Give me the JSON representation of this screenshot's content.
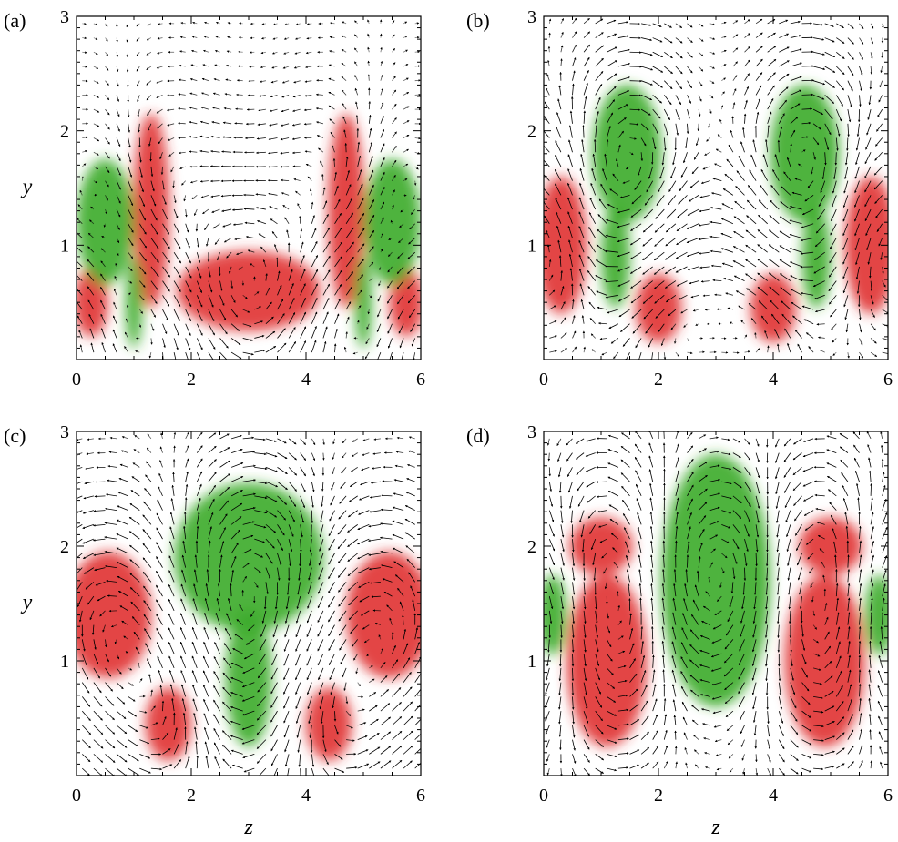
{
  "chart_data": [
    {
      "type": "heatmap",
      "panel_label": "(a)",
      "xlabel": "",
      "ylabel": "y",
      "xlim": [
        0,
        6
      ],
      "ylim": [
        0,
        3
      ],
      "x_ticks": [
        "0",
        "2",
        "4",
        "6"
      ],
      "y_ticks": [
        "1",
        "2",
        "3"
      ],
      "overlay": "velocity vectors",
      "regions": [
        {
          "sign": "positive",
          "color": "#e03030",
          "cx": 3.0,
          "cy": 0.6,
          "rx": 1.25,
          "ry": 0.35
        },
        {
          "sign": "positive",
          "color": "#e03030",
          "cx": 1.3,
          "cy": 1.3,
          "rx": 0.32,
          "ry": 0.85
        },
        {
          "sign": "positive",
          "color": "#e03030",
          "cx": 4.7,
          "cy": 1.3,
          "rx": 0.32,
          "ry": 0.85
        },
        {
          "sign": "positive",
          "color": "#e03030",
          "cx": 0.25,
          "cy": 0.5,
          "rx": 0.3,
          "ry": 0.3
        },
        {
          "sign": "positive",
          "color": "#e03030",
          "cx": 5.75,
          "cy": 0.5,
          "rx": 0.3,
          "ry": 0.3
        },
        {
          "sign": "negative",
          "color": "#3cab2a",
          "cx": 0.5,
          "cy": 1.2,
          "rx": 0.5,
          "ry": 0.55
        },
        {
          "sign": "negative",
          "color": "#3cab2a",
          "cx": 5.5,
          "cy": 1.2,
          "rx": 0.5,
          "ry": 0.55
        },
        {
          "sign": "negative",
          "color": "#3cab2a",
          "cx": 1.0,
          "cy": 0.5,
          "rx": 0.15,
          "ry": 0.4
        },
        {
          "sign": "negative",
          "color": "#3cab2a",
          "cx": 5.0,
          "cy": 0.5,
          "rx": 0.15,
          "ry": 0.4
        }
      ]
    },
    {
      "type": "heatmap",
      "panel_label": "(b)",
      "xlabel": "",
      "ylabel": "",
      "xlim": [
        0,
        6
      ],
      "ylim": [
        0,
        3
      ],
      "x_ticks": [
        "0",
        "2",
        "4",
        "6"
      ],
      "y_ticks": [
        "1",
        "2",
        "3"
      ],
      "overlay": "velocity vectors",
      "regions": [
        {
          "sign": "negative",
          "color": "#3cab2a",
          "cx": 1.45,
          "cy": 1.8,
          "rx": 0.6,
          "ry": 0.6
        },
        {
          "sign": "negative",
          "color": "#3cab2a",
          "cx": 4.55,
          "cy": 1.8,
          "rx": 0.6,
          "ry": 0.6
        },
        {
          "sign": "negative",
          "color": "#3cab2a",
          "cx": 1.25,
          "cy": 0.9,
          "rx": 0.25,
          "ry": 0.45
        },
        {
          "sign": "negative",
          "color": "#3cab2a",
          "cx": 4.75,
          "cy": 0.9,
          "rx": 0.25,
          "ry": 0.45
        },
        {
          "sign": "positive",
          "color": "#e03030",
          "cx": 0.3,
          "cy": 1.0,
          "rx": 0.45,
          "ry": 0.6
        },
        {
          "sign": "positive",
          "color": "#e03030",
          "cx": 5.7,
          "cy": 1.0,
          "rx": 0.45,
          "ry": 0.6
        },
        {
          "sign": "positive",
          "color": "#e03030",
          "cx": 2.0,
          "cy": 0.45,
          "rx": 0.4,
          "ry": 0.3
        },
        {
          "sign": "positive",
          "color": "#e03030",
          "cx": 4.0,
          "cy": 0.45,
          "rx": 0.4,
          "ry": 0.3
        }
      ]
    },
    {
      "type": "heatmap",
      "panel_label": "(c)",
      "xlabel": "z",
      "ylabel": "y",
      "xlim": [
        0,
        6
      ],
      "ylim": [
        0,
        3
      ],
      "x_ticks": [
        "0",
        "2",
        "4",
        "6"
      ],
      "y_ticks": [
        "1",
        "2",
        "3"
      ],
      "overlay": "velocity vectors",
      "regions": [
        {
          "sign": "negative",
          "color": "#3cab2a",
          "cx": 3.0,
          "cy": 1.9,
          "rx": 1.3,
          "ry": 0.65
        },
        {
          "sign": "negative",
          "color": "#3cab2a",
          "cx": 3.0,
          "cy": 0.85,
          "rx": 0.4,
          "ry": 0.6
        },
        {
          "sign": "positive",
          "color": "#e03030",
          "cx": 0.55,
          "cy": 1.4,
          "rx": 0.75,
          "ry": 0.55
        },
        {
          "sign": "positive",
          "color": "#e03030",
          "cx": 5.45,
          "cy": 1.4,
          "rx": 0.75,
          "ry": 0.55
        },
        {
          "sign": "positive",
          "color": "#e03030",
          "cx": 1.6,
          "cy": 0.45,
          "rx": 0.4,
          "ry": 0.32
        },
        {
          "sign": "positive",
          "color": "#e03030",
          "cx": 4.4,
          "cy": 0.45,
          "rx": 0.4,
          "ry": 0.32
        }
      ]
    },
    {
      "type": "heatmap",
      "panel_label": "(d)",
      "xlabel": "z",
      "ylabel": "",
      "xlim": [
        0,
        6
      ],
      "ylim": [
        0,
        3
      ],
      "x_ticks": [
        "0",
        "2",
        "4",
        "6"
      ],
      "y_ticks": [
        "1",
        "2",
        "3"
      ],
      "overlay": "velocity vectors",
      "regions": [
        {
          "sign": "negative",
          "color": "#3cab2a",
          "cx": 3.0,
          "cy": 1.7,
          "rx": 0.95,
          "ry": 1.1
        },
        {
          "sign": "negative",
          "color": "#3cab2a",
          "cx": 0.15,
          "cy": 1.4,
          "rx": 0.25,
          "ry": 0.35
        },
        {
          "sign": "negative",
          "color": "#3cab2a",
          "cx": 5.85,
          "cy": 1.4,
          "rx": 0.25,
          "ry": 0.35
        },
        {
          "sign": "positive",
          "color": "#e03030",
          "cx": 1.1,
          "cy": 1.0,
          "rx": 0.7,
          "ry": 0.75
        },
        {
          "sign": "positive",
          "color": "#e03030",
          "cx": 4.9,
          "cy": 1.0,
          "rx": 0.7,
          "ry": 0.75
        },
        {
          "sign": "positive",
          "color": "#e03030",
          "cx": 1.0,
          "cy": 2.0,
          "rx": 0.55,
          "ry": 0.25
        },
        {
          "sign": "positive",
          "color": "#e03030",
          "cx": 5.0,
          "cy": 2.0,
          "rx": 0.55,
          "ry": 0.25
        }
      ]
    }
  ]
}
